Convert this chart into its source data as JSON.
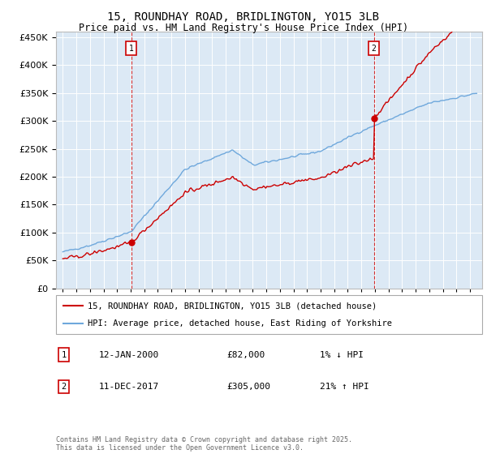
{
  "title": "15, ROUNDHAY ROAD, BRIDLINGTON, YO15 3LB",
  "subtitle": "Price paid vs. HM Land Registry's House Price Index (HPI)",
  "plot_bg_color": "#dce9f5",
  "grid_color": "#ffffff",
  "hpi_color": "#6fa8dc",
  "price_color": "#cc0000",
  "vline_color": "#cc0000",
  "ylim": [
    0,
    460000
  ],
  "yticks": [
    0,
    50000,
    100000,
    150000,
    200000,
    250000,
    300000,
    350000,
    400000,
    450000
  ],
  "sale1_year": 2000.04,
  "sale1_price": 82000,
  "sale2_year": 2017.92,
  "sale2_price": 305000,
  "legend_label1": "15, ROUNDHAY ROAD, BRIDLINGTON, YO15 3LB (detached house)",
  "legend_label2": "HPI: Average price, detached house, East Riding of Yorkshire",
  "annot1_label": "1",
  "annot2_label": "2",
  "annot1_date": "12-JAN-2000",
  "annot1_price": "£82,000",
  "annot1_hpi": "1% ↓ HPI",
  "annot2_date": "11-DEC-2017",
  "annot2_price": "£305,000",
  "annot2_hpi": "21% ↑ HPI",
  "footer": "Contains HM Land Registry data © Crown copyright and database right 2025.\nThis data is licensed under the Open Government Licence v3.0."
}
